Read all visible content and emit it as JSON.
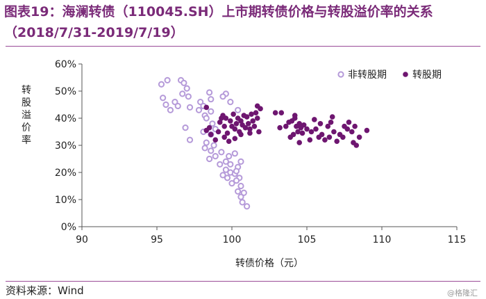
{
  "header": {
    "title_line1": "图表19：海澜转债（110045.SH）上市期转债价格与转股溢价率的关系",
    "title_line2": "（2018/7/31-2019/7/19）"
  },
  "footer": {
    "source": "资料来源：Wind",
    "watermark": "@格隆汇"
  },
  "colors": {
    "title": "#7a2a78",
    "non_conversion": "#b59ad9",
    "conversion": "#6e1670"
  },
  "chart_data": {
    "type": "scatter",
    "xlabel": "转债价格（元）",
    "ylabel": "转股溢价率",
    "xlim": [
      90,
      115
    ],
    "ylim": [
      0,
      60
    ],
    "xticks": [
      90,
      95,
      100,
      105,
      110,
      115
    ],
    "yticks": [
      "0%",
      "10%",
      "20%",
      "30%",
      "40%",
      "50%",
      "60%"
    ],
    "legend_position": "top-right",
    "series": [
      {
        "name": "非转股期",
        "marker": "hollow-circle",
        "points": [
          [
            95.3,
            52.5
          ],
          [
            95.7,
            54
          ],
          [
            96.6,
            54
          ],
          [
            96.8,
            53
          ],
          [
            97,
            51
          ],
          [
            96.7,
            49
          ],
          [
            97.1,
            48
          ],
          [
            95.4,
            47.5
          ],
          [
            96.2,
            46
          ],
          [
            95.6,
            45
          ],
          [
            96.4,
            44.5
          ],
          [
            97.2,
            44
          ],
          [
            95.9,
            43
          ],
          [
            96.9,
            36.5
          ],
          [
            97.2,
            32
          ],
          [
            97.9,
            46
          ],
          [
            98.1,
            44.5
          ],
          [
            97.8,
            43
          ],
          [
            98.6,
            42.5
          ],
          [
            98.2,
            41
          ],
          [
            99.6,
            49
          ],
          [
            98.5,
            49.5
          ],
          [
            99.4,
            48
          ],
          [
            98.6,
            47
          ],
          [
            99.9,
            46
          ],
          [
            100.4,
            43
          ],
          [
            98.3,
            40
          ],
          [
            98.7,
            38
          ],
          [
            98.9,
            36
          ],
          [
            98.1,
            35
          ],
          [
            98.6,
            34
          ],
          [
            98.3,
            31
          ],
          [
            98.8,
            30
          ],
          [
            98.2,
            29
          ],
          [
            98.6,
            28
          ],
          [
            99.3,
            27.5
          ],
          [
            98.9,
            26
          ],
          [
            98.5,
            25
          ],
          [
            99.8,
            26
          ],
          [
            100.2,
            27
          ],
          [
            99.6,
            24
          ],
          [
            99.2,
            23
          ],
          [
            99.9,
            23
          ],
          [
            100.4,
            22
          ],
          [
            99.6,
            21
          ],
          [
            99.9,
            20
          ],
          [
            100.2,
            19.5
          ],
          [
            100.5,
            18
          ],
          [
            99.7,
            18
          ],
          [
            100,
            16
          ],
          [
            100.3,
            17
          ],
          [
            100.6,
            15
          ],
          [
            100.4,
            13
          ],
          [
            100.6,
            11
          ],
          [
            100.7,
            9
          ],
          [
            101,
            7.5
          ],
          [
            100.3,
            20.5
          ],
          [
            100.6,
            24
          ],
          [
            99.4,
            19
          ],
          [
            100.8,
            12.5
          ]
        ]
      },
      {
        "name": "转股期",
        "marker": "filled-circle",
        "points": [
          [
            98.3,
            44
          ],
          [
            98.3,
            35.5
          ],
          [
            98.5,
            36.5
          ],
          [
            98.6,
            34
          ],
          [
            98.9,
            32
          ],
          [
            99.1,
            35
          ],
          [
            99.2,
            38.5
          ],
          [
            99.3,
            40
          ],
          [
            99.4,
            41
          ],
          [
            99.5,
            37
          ],
          [
            99.6,
            40
          ],
          [
            99.7,
            34.5
          ],
          [
            99.8,
            31.5
          ],
          [
            99.9,
            39
          ],
          [
            100,
            37
          ],
          [
            100.1,
            41.5
          ],
          [
            100.2,
            36
          ],
          [
            100.3,
            38
          ],
          [
            100.4,
            40
          ],
          [
            100.5,
            35
          ],
          [
            100.6,
            39
          ],
          [
            100.7,
            37.5
          ],
          [
            100.8,
            41
          ],
          [
            100.9,
            36.5
          ],
          [
            101,
            40.5
          ],
          [
            101.1,
            38
          ],
          [
            101.2,
            34.5
          ],
          [
            101.3,
            41.5
          ],
          [
            101.4,
            39
          ],
          [
            101.5,
            37
          ],
          [
            101.6,
            42
          ],
          [
            101.7,
            40
          ],
          [
            101.8,
            35
          ],
          [
            101.9,
            43.5
          ],
          [
            101.7,
            44.5
          ],
          [
            99.5,
            33
          ],
          [
            100.2,
            32.5
          ],
          [
            101.2,
            36
          ],
          [
            100.6,
            34
          ],
          [
            102.9,
            42
          ],
          [
            103.3,
            42
          ],
          [
            103.2,
            36.5
          ],
          [
            103.6,
            37
          ],
          [
            103.8,
            38.5
          ],
          [
            104,
            39
          ],
          [
            104.1,
            34
          ],
          [
            104.2,
            41
          ],
          [
            104.3,
            37
          ],
          [
            104.4,
            35
          ],
          [
            104.5,
            38
          ],
          [
            104.6,
            36.5
          ],
          [
            104.7,
            34.5
          ],
          [
            104.8,
            37.5
          ],
          [
            105,
            36
          ],
          [
            103.9,
            33
          ],
          [
            104.5,
            31
          ],
          [
            105.2,
            32
          ],
          [
            105.3,
            35
          ],
          [
            105.6,
            36
          ],
          [
            105.8,
            33
          ],
          [
            105.9,
            38
          ],
          [
            106,
            34
          ],
          [
            106.2,
            32
          ],
          [
            106.4,
            37
          ],
          [
            106.5,
            33
          ],
          [
            106.6,
            38.5
          ],
          [
            106.7,
            40.5
          ],
          [
            106.8,
            35
          ],
          [
            107,
            31.5
          ],
          [
            107.2,
            34
          ],
          [
            107.4,
            33
          ],
          [
            107.5,
            37
          ],
          [
            107.7,
            36
          ],
          [
            107.8,
            38.5
          ],
          [
            108,
            35
          ],
          [
            108.1,
            31
          ],
          [
            108.2,
            37
          ],
          [
            108.3,
            30
          ],
          [
            108.5,
            33
          ],
          [
            109,
            35.5
          ],
          [
            105.5,
            39.5
          ],
          [
            104.2,
            40
          ]
        ]
      }
    ]
  }
}
